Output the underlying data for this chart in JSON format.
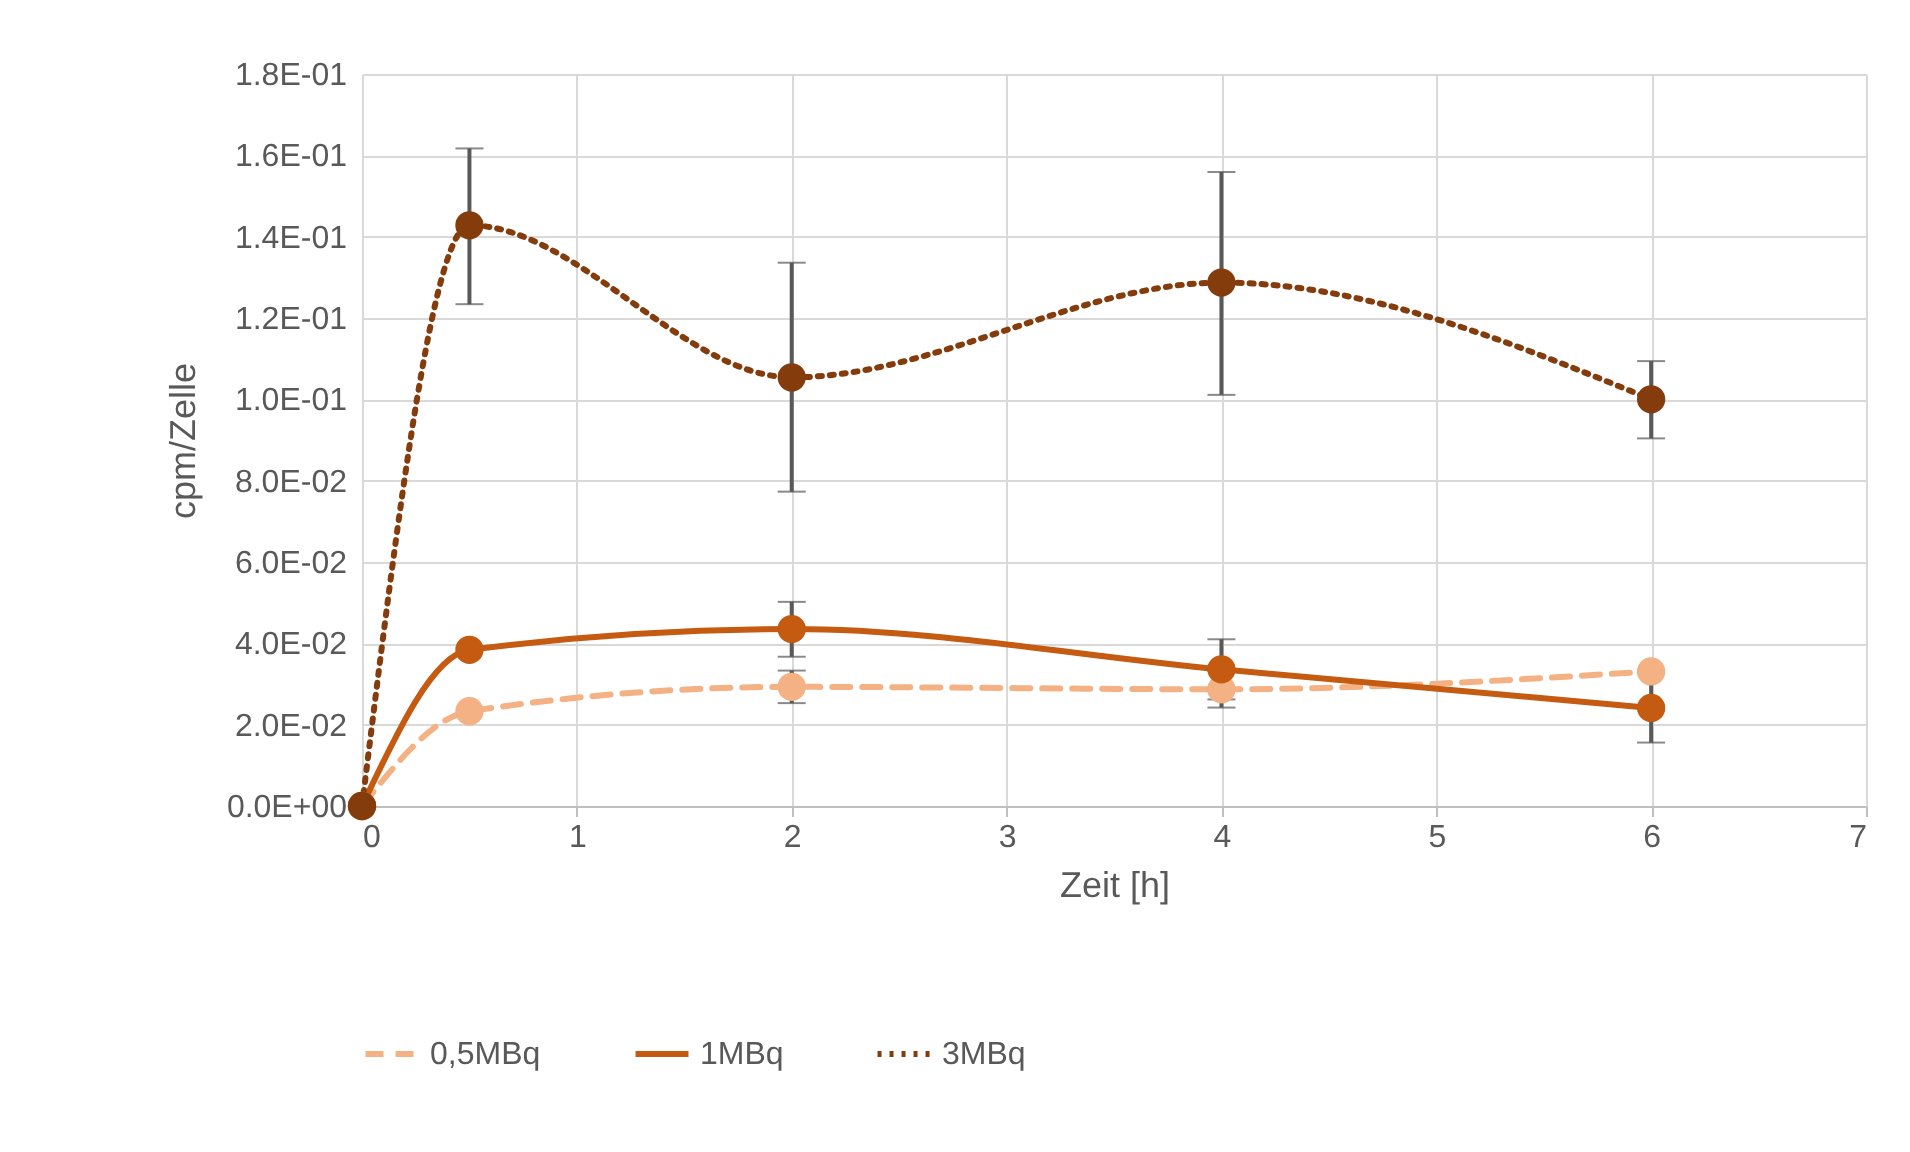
{
  "chart_data": {
    "type": "line",
    "xlabel": "Zeit [h]",
    "ylabel": "cpm/Zelle",
    "x": [
      0,
      0.5,
      2,
      4,
      6
    ],
    "xlim": [
      0,
      7
    ],
    "xticks": [
      0,
      1,
      2,
      3,
      4,
      5,
      6,
      7
    ],
    "ylim": [
      0,
      0.18
    ],
    "yticks": [
      {
        "value": 0,
        "label": "0.0E+00"
      },
      {
        "value": 0.02,
        "label": "2.0E-02"
      },
      {
        "value": 0.04,
        "label": "4.0E-02"
      },
      {
        "value": 0.06,
        "label": "6.0E-02"
      },
      {
        "value": 0.08,
        "label": "8.0E-02"
      },
      {
        "value": 0.1,
        "label": "1.0E-01"
      },
      {
        "value": 0.12,
        "label": "1.2E-01"
      },
      {
        "value": 0.14,
        "label": "1.4E-01"
      },
      {
        "value": 0.16,
        "label": "1.6E-01"
      },
      {
        "value": 0.18,
        "label": "1.8E-01"
      }
    ],
    "grid": true,
    "legend": "bottom",
    "marker": "circle",
    "series": [
      {
        "name": "0,5MBq",
        "color": "#f4b183",
        "line_style": "dashed",
        "values": [
          0,
          0.0233,
          0.0293,
          0.0287,
          0.0331
        ],
        "errors": [
          null,
          null,
          0.004,
          0.0045,
          null
        ]
      },
      {
        "name": "1MBq",
        "color": "#c55a11",
        "line_style": "solid",
        "values": [
          0,
          0.0384,
          0.0435,
          0.0336,
          0.0241
        ],
        "errors": [
          null,
          null,
          [
            0.0367,
            0.0502
          ],
          0.0074,
          0.0085
        ]
      },
      {
        "name": "3MBq",
        "color": "#843c0c",
        "line_style": "dotted",
        "values": [
          0,
          0.1428,
          0.1054,
          0.1287,
          0.1
        ],
        "errors": [
          null,
          [
            0.1234,
            0.1617
          ],
          [
            0.0773,
            0.1336
          ],
          [
            0.1011,
            0.1559
          ],
          [
            0.0904,
            0.1094
          ]
        ]
      }
    ]
  }
}
